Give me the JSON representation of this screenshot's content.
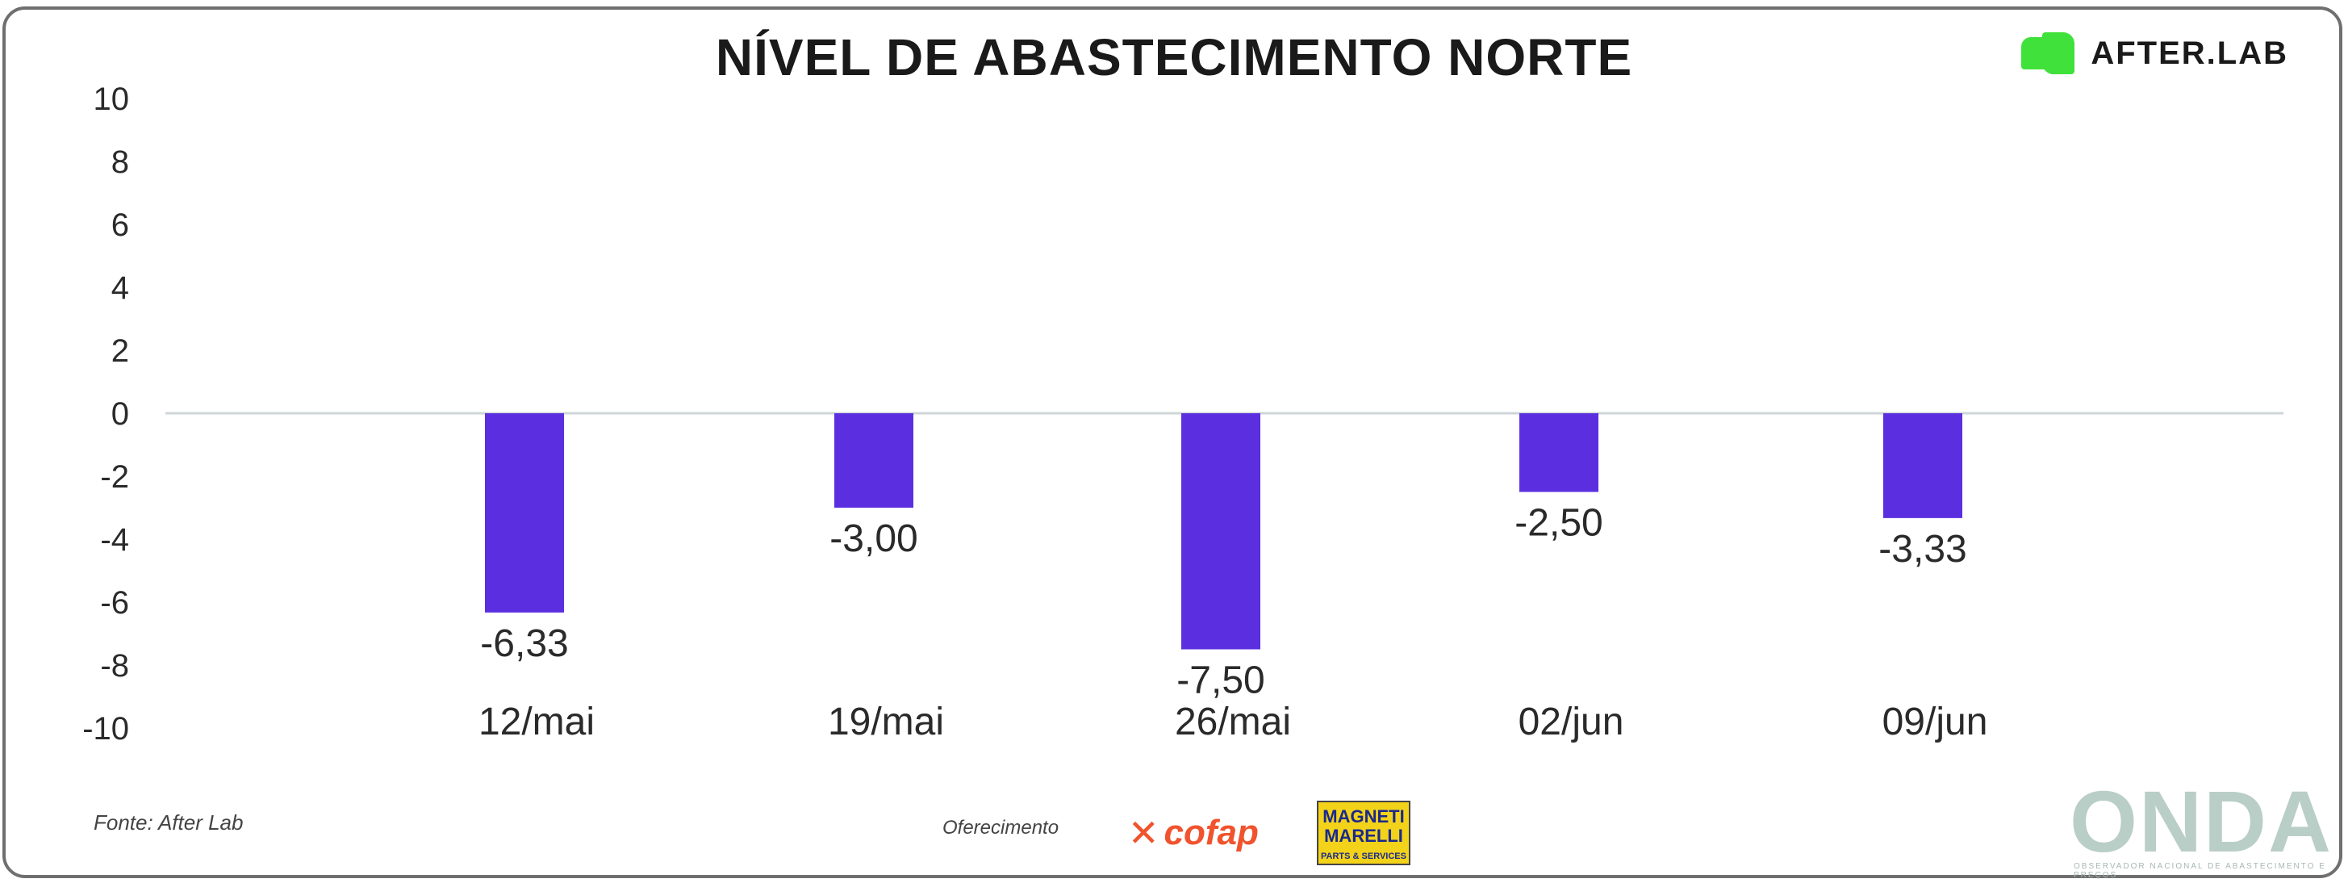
{
  "title": "NÍVEL DE ABASTECIMENTO NORTE",
  "brand": {
    "name": "AFTER.LAB",
    "color": "#3fe13a"
  },
  "footer": {
    "source": "Fonte: After Lab",
    "sponsor_label": "Oferecimento",
    "sponsor1": "cofap",
    "sponsor2_line1": "MAGNETI MARELLI",
    "sponsor2_line2": "PARTS & SERVICES",
    "onda": "ONDA",
    "onda_sub": "OBSERVADOR NACIONAL DE ABASTECIMENTO E PREÇOS"
  },
  "chart_data": {
    "type": "bar",
    "title": "NÍVEL DE ABASTECIMENTO NORTE",
    "categories": [
      "12/mai",
      "19/mai",
      "26/mai",
      "02/jun",
      "09/jun"
    ],
    "values": [
      -6.33,
      -3.0,
      -7.5,
      -2.5,
      -3.33
    ],
    "value_labels": [
      "-6,33",
      "-3,00",
      "-7,50",
      "-2,50",
      "-3,33"
    ],
    "ylim": [
      -10,
      10
    ],
    "yticks": [
      "10",
      "8",
      "6",
      "4",
      "2",
      "0",
      "-2",
      "-4",
      "-6",
      "-8",
      "-10"
    ],
    "bar_color": "#5b2fe0",
    "grid": false,
    "xlabel": "",
    "ylabel": ""
  }
}
